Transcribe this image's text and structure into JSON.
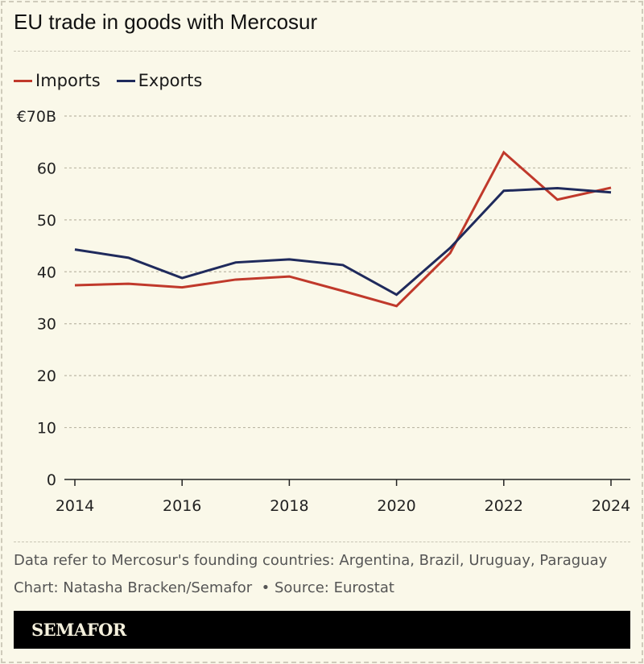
{
  "title": "EU trade in goods with Mercosur",
  "chart_data": {
    "type": "line",
    "title": "EU trade in goods with Mercosur",
    "x": [
      2014,
      2015,
      2016,
      2017,
      2018,
      2019,
      2020,
      2021,
      2022,
      2023,
      2024
    ],
    "series": [
      {
        "name": "Imports",
        "color": "#c0392b",
        "values": [
          37.4,
          37.7,
          37.0,
          38.5,
          39.1,
          36.3,
          33.4,
          43.6,
          63.0,
          53.9,
          56.2
        ]
      },
      {
        "name": "Exports",
        "color": "#1f2a5c",
        "values": [
          44.3,
          42.7,
          38.8,
          41.8,
          42.4,
          41.3,
          35.6,
          44.6,
          55.6,
          56.1,
          55.3
        ]
      }
    ],
    "ylim": [
      0,
      70
    ],
    "y_ticks": [
      0,
      10,
      20,
      30,
      40,
      50,
      60,
      70
    ],
    "y_tick_labels": [
      "0",
      "10",
      "20",
      "30",
      "40",
      "50",
      "60",
      "€70B"
    ],
    "x_ticks": [
      2014,
      2016,
      2018,
      2020,
      2022,
      2024
    ],
    "x_tick_labels": [
      "2014",
      "2016",
      "2018",
      "2020",
      "2022",
      "2024"
    ],
    "grid": true,
    "legend": "top-left"
  },
  "notes": {
    "data_note": "Data refer to Mercosur's founding countries: Argentina, Brazil, Uruguay, Paraguay",
    "credit": "Chart: Natasha Bracken/Semafor  • Source: Eurostat"
  },
  "brand": "SEMAFOR"
}
